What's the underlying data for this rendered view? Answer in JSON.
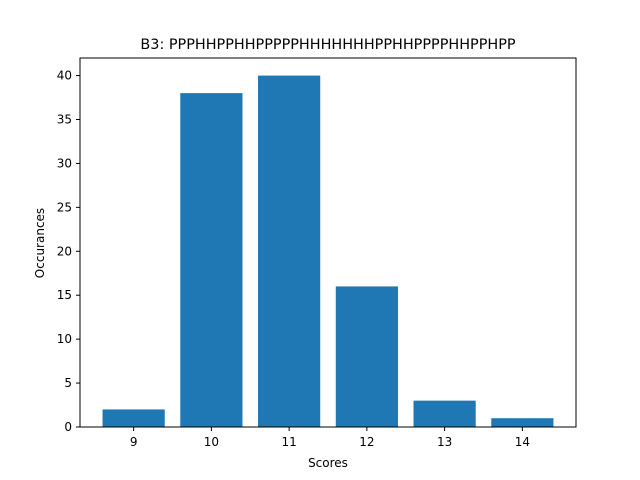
{
  "chart_data": {
    "type": "bar",
    "title": "B3: PPPHHPPHHPPPPPHHHHHHHPPHHPPPPHHPPHPP",
    "xlabel": "Scores",
    "ylabel": "Occurances",
    "categories": [
      "9",
      "10",
      "11",
      "12",
      "13",
      "14"
    ],
    "values": [
      2,
      38,
      40,
      16,
      3,
      1
    ],
    "ylim": [
      0,
      42
    ],
    "yticks": [
      0,
      5,
      10,
      15,
      20,
      25,
      30,
      35,
      40
    ],
    "bar_color": "#1f77b4",
    "grid": false,
    "legend": "none"
  }
}
